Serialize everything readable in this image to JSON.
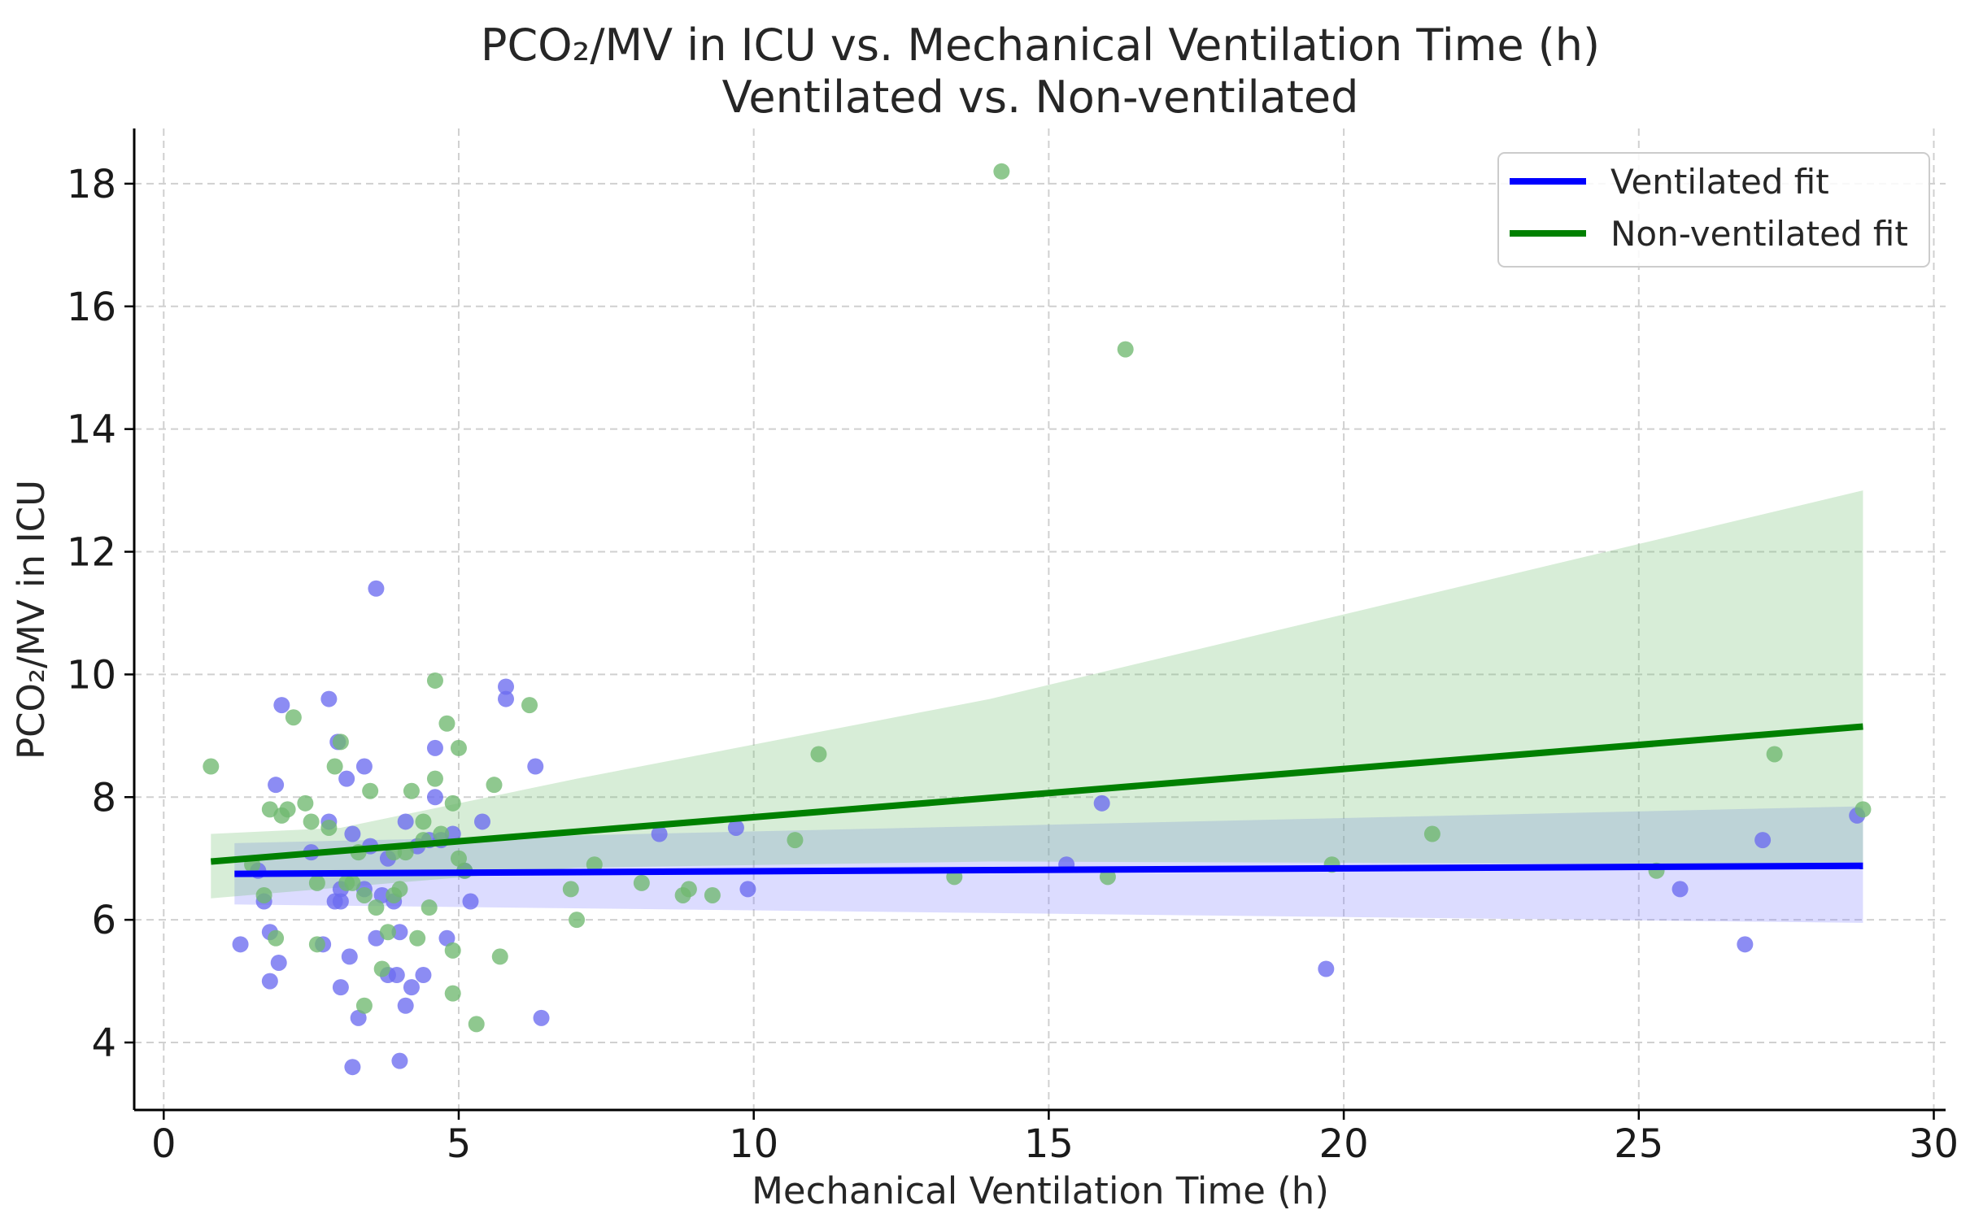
{
  "chart_data": {
    "type": "scatter",
    "title": [
      "PCO₂/MV in ICU vs. Mechanical Ventilation Time (h)",
      "Ventilated vs. Non-ventilated"
    ],
    "xlabel": "Mechanical Ventilation Time (h)",
    "ylabel": "PCO₂/MV in ICU",
    "xlim": [
      -0.5,
      30.2
    ],
    "ylim": [
      2.9,
      18.9
    ],
    "xticks": [
      0,
      5,
      10,
      15,
      20,
      25,
      30
    ],
    "yticks": [
      4,
      6,
      8,
      10,
      12,
      14,
      16,
      18
    ],
    "grid": true,
    "legend_position": "top-right",
    "series": [
      {
        "name": "Ventilated",
        "color": "#6c6cf0",
        "points": [
          [
            1.3,
            5.6
          ],
          [
            1.6,
            6.8
          ],
          [
            1.7,
            6.3
          ],
          [
            1.8,
            5.0
          ],
          [
            1.8,
            5.8
          ],
          [
            1.9,
            8.2
          ],
          [
            1.95,
            5.3
          ],
          [
            2.0,
            9.5
          ],
          [
            2.5,
            7.1
          ],
          [
            2.7,
            5.6
          ],
          [
            2.8,
            9.6
          ],
          [
            2.8,
            7.6
          ],
          [
            2.9,
            6.3
          ],
          [
            2.95,
            8.9
          ],
          [
            3.0,
            6.5
          ],
          [
            3.0,
            6.3
          ],
          [
            3.0,
            4.9
          ],
          [
            3.1,
            8.3
          ],
          [
            3.15,
            5.4
          ],
          [
            3.2,
            7.4
          ],
          [
            3.2,
            3.6
          ],
          [
            3.3,
            4.4
          ],
          [
            3.4,
            6.5
          ],
          [
            3.4,
            8.5
          ],
          [
            3.5,
            7.2
          ],
          [
            3.6,
            11.4
          ],
          [
            3.6,
            5.7
          ],
          [
            3.7,
            6.4
          ],
          [
            3.8,
            7.0
          ],
          [
            3.8,
            5.1
          ],
          [
            3.9,
            6.3
          ],
          [
            3.95,
            5.1
          ],
          [
            4.0,
            5.8
          ],
          [
            4.0,
            3.7
          ],
          [
            4.1,
            4.6
          ],
          [
            4.1,
            7.6
          ],
          [
            4.2,
            4.9
          ],
          [
            4.3,
            7.2
          ],
          [
            4.4,
            5.1
          ],
          [
            4.5,
            7.3
          ],
          [
            4.6,
            8.8
          ],
          [
            4.6,
            8.0
          ],
          [
            4.7,
            7.3
          ],
          [
            4.8,
            5.7
          ],
          [
            4.9,
            7.4
          ],
          [
            5.1,
            6.8
          ],
          [
            5.2,
            6.3
          ],
          [
            5.4,
            7.6
          ],
          [
            5.8,
            9.8
          ],
          [
            5.8,
            9.6
          ],
          [
            6.3,
            8.5
          ],
          [
            6.4,
            4.4
          ],
          [
            8.4,
            7.4
          ],
          [
            9.7,
            7.5
          ],
          [
            9.9,
            6.5
          ],
          [
            15.3,
            6.9
          ],
          [
            15.9,
            7.9
          ],
          [
            19.7,
            5.2
          ],
          [
            25.7,
            6.5
          ],
          [
            26.8,
            5.6
          ],
          [
            27.1,
            7.3
          ],
          [
            28.7,
            7.7
          ]
        ]
      },
      {
        "name": "Non-ventilated",
        "color": "#6fb86f",
        "points": [
          [
            0.8,
            8.5
          ],
          [
            1.5,
            6.9
          ],
          [
            1.7,
            6.4
          ],
          [
            1.8,
            7.8
          ],
          [
            1.9,
            5.7
          ],
          [
            2.0,
            7.7
          ],
          [
            2.1,
            7.8
          ],
          [
            2.2,
            9.3
          ],
          [
            2.4,
            7.9
          ],
          [
            2.5,
            7.6
          ],
          [
            2.6,
            6.6
          ],
          [
            2.6,
            5.6
          ],
          [
            2.8,
            7.5
          ],
          [
            2.9,
            8.5
          ],
          [
            3.0,
            8.9
          ],
          [
            3.1,
            6.6
          ],
          [
            3.2,
            6.6
          ],
          [
            3.3,
            7.1
          ],
          [
            3.4,
            6.4
          ],
          [
            3.4,
            4.6
          ],
          [
            3.5,
            8.1
          ],
          [
            3.6,
            6.2
          ],
          [
            3.7,
            5.2
          ],
          [
            3.8,
            5.8
          ],
          [
            3.9,
            7.1
          ],
          [
            3.9,
            6.4
          ],
          [
            4.0,
            6.5
          ],
          [
            4.1,
            7.1
          ],
          [
            4.2,
            8.1
          ],
          [
            4.3,
            5.7
          ],
          [
            4.4,
            7.6
          ],
          [
            4.4,
            7.3
          ],
          [
            4.5,
            6.2
          ],
          [
            4.6,
            9.9
          ],
          [
            4.6,
            8.3
          ],
          [
            4.7,
            7.4
          ],
          [
            4.8,
            9.2
          ],
          [
            4.9,
            7.9
          ],
          [
            4.9,
            5.5
          ],
          [
            4.9,
            4.8
          ],
          [
            5.0,
            8.8
          ],
          [
            5.0,
            7.0
          ],
          [
            5.1,
            6.8
          ],
          [
            5.3,
            4.3
          ],
          [
            5.6,
            8.2
          ],
          [
            5.7,
            5.4
          ],
          [
            6.2,
            9.5
          ],
          [
            6.9,
            6.5
          ],
          [
            7.0,
            6.0
          ],
          [
            7.3,
            6.9
          ],
          [
            8.1,
            6.6
          ],
          [
            8.8,
            6.4
          ],
          [
            8.9,
            6.5
          ],
          [
            9.3,
            6.4
          ],
          [
            10.7,
            7.3
          ],
          [
            11.1,
            8.7
          ],
          [
            13.4,
            6.7
          ],
          [
            14.2,
            18.2
          ],
          [
            16.0,
            6.7
          ],
          [
            16.3,
            15.3
          ],
          [
            19.8,
            6.9
          ],
          [
            21.5,
            7.4
          ],
          [
            25.3,
            6.8
          ],
          [
            27.3,
            8.7
          ],
          [
            28.8,
            7.8
          ]
        ]
      }
    ],
    "fits": [
      {
        "name": "Ventilated fit",
        "color": "#0000ff",
        "x": [
          1.2,
          28.8
        ],
        "y": [
          6.75,
          6.88
        ],
        "ci_color": "#8080ff",
        "ci_lower": [
          [
            1.2,
            6.25
          ],
          [
            28.8,
            5.95
          ]
        ],
        "ci_upper": [
          [
            1.2,
            7.25
          ],
          [
            28.8,
            7.85
          ]
        ]
      },
      {
        "name": "Non-ventilated fit",
        "color": "#008000",
        "x": [
          0.8,
          28.8
        ],
        "y": [
          6.95,
          9.15
        ],
        "ci_color": "#6fbf6f",
        "ci_lower": [
          [
            0.8,
            6.35
          ],
          [
            7.0,
            6.85
          ],
          [
            14.0,
            6.95
          ],
          [
            28.8,
            6.9
          ]
        ],
        "ci_upper": [
          [
            0.8,
            7.4
          ],
          [
            3.0,
            7.5
          ],
          [
            7.0,
            8.3
          ],
          [
            14.0,
            9.6
          ],
          [
            28.8,
            13.0
          ]
        ]
      }
    ]
  }
}
